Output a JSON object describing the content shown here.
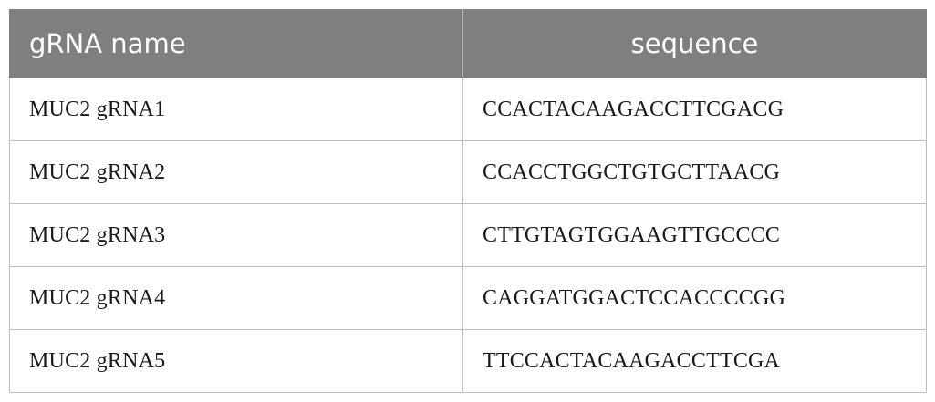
{
  "table": {
    "headers": [
      "gRNA name",
      "sequence"
    ],
    "rows": [
      {
        "name": "MUC2 gRNA1",
        "sequence": "CCACTACAAGACCTTCGACG"
      },
      {
        "name": "MUC2 gRNA2",
        "sequence": "CCACCTGGCTGTGCTTAACG"
      },
      {
        "name": "MUC2 gRNA3",
        "sequence": "CTTGTAGTGGAAGTTGCCCC"
      },
      {
        "name": "MUC2 gRNA4",
        "sequence": "CAGGATGGACTCCACCCCGG"
      },
      {
        "name": "MUC2 gRNA5",
        "sequence": "TTCCACTACAAGACCTTCGA"
      }
    ]
  },
  "colors": {
    "header_bg": "#7f7f7f",
    "header_text": "#ffffff",
    "border": "#bdbdbd"
  }
}
